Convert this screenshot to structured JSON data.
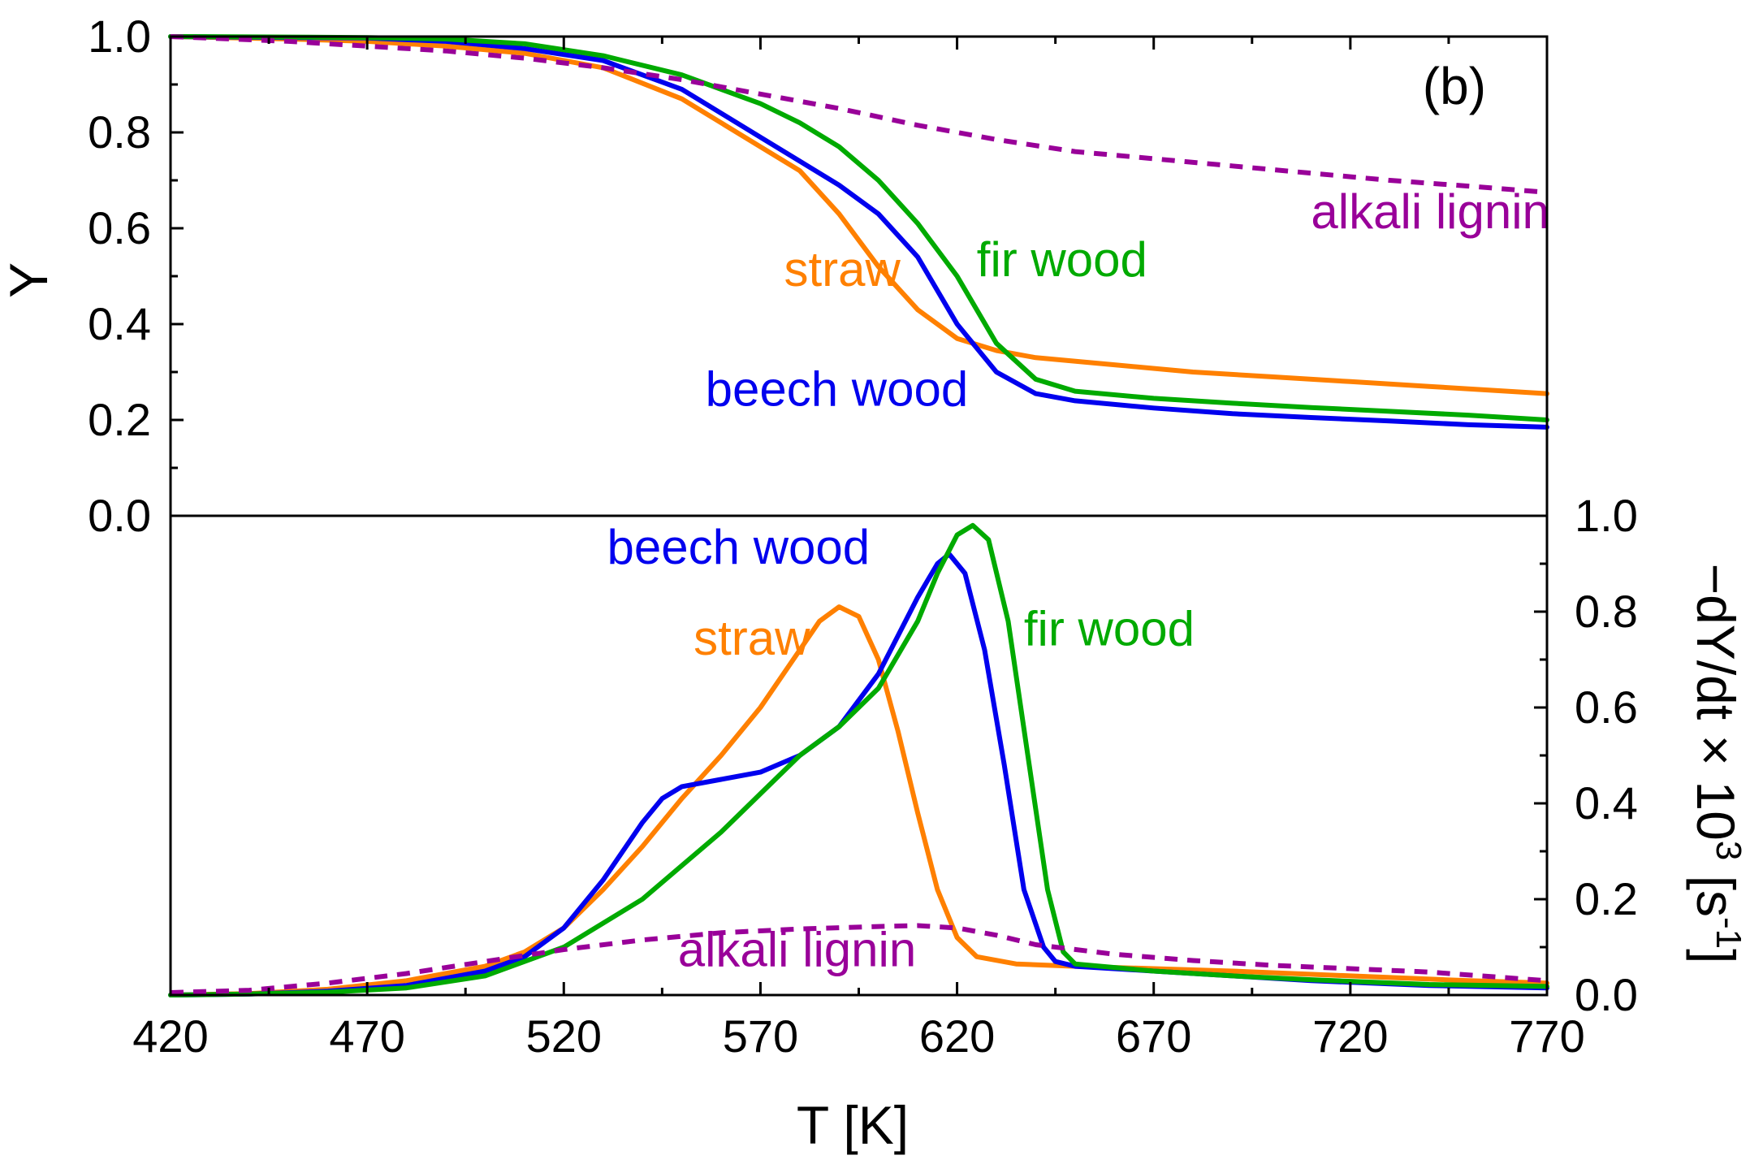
{
  "chart_data": [
    {
      "id": "top",
      "type": "line",
      "panel_label": "(b)",
      "xlabel": "T [K]",
      "ylabel": "Y",
      "xlim": [
        420,
        770
      ],
      "ylim": [
        0,
        1
      ],
      "xticks": [
        "420",
        "470",
        "520",
        "570",
        "620",
        "670",
        "720",
        "770"
      ],
      "yticks": [
        "0.0",
        "0.2",
        "0.4",
        "0.6",
        "0.8",
        "1.0"
      ],
      "series": [
        {
          "name": "straw",
          "color": "#ff8000",
          "dashed": false,
          "points": [
            [
              420,
              1.0
            ],
            [
              450,
              0.995
            ],
            [
              470,
              0.99
            ],
            [
              490,
              0.98
            ],
            [
              510,
              0.965
            ],
            [
              530,
              0.935
            ],
            [
              550,
              0.87
            ],
            [
              570,
              0.77
            ],
            [
              580,
              0.72
            ],
            [
              590,
              0.63
            ],
            [
              600,
              0.52
            ],
            [
              610,
              0.43
            ],
            [
              620,
              0.37
            ],
            [
              630,
              0.345
            ],
            [
              640,
              0.33
            ],
            [
              660,
              0.315
            ],
            [
              680,
              0.3
            ],
            [
              700,
              0.29
            ],
            [
              720,
              0.28
            ],
            [
              740,
              0.27
            ],
            [
              770,
              0.255
            ]
          ]
        },
        {
          "name": "beech wood",
          "color": "#0000ee",
          "dashed": false,
          "points": [
            [
              420,
              1.0
            ],
            [
              450,
              0.998
            ],
            [
              470,
              0.997
            ],
            [
              490,
              0.99
            ],
            [
              510,
              0.975
            ],
            [
              530,
              0.95
            ],
            [
              550,
              0.89
            ],
            [
              570,
              0.79
            ],
            [
              580,
              0.74
            ],
            [
              590,
              0.69
            ],
            [
              600,
              0.63
            ],
            [
              610,
              0.54
            ],
            [
              620,
              0.4
            ],
            [
              630,
              0.3
            ],
            [
              640,
              0.255
            ],
            [
              650,
              0.24
            ],
            [
              670,
              0.225
            ],
            [
              690,
              0.213
            ],
            [
              710,
              0.205
            ],
            [
              730,
              0.198
            ],
            [
              750,
              0.19
            ],
            [
              770,
              0.185
            ]
          ]
        },
        {
          "name": "fir wood",
          "color": "#00aa00",
          "dashed": false,
          "points": [
            [
              420,
              1.0
            ],
            [
              450,
              0.999
            ],
            [
              470,
              0.998
            ],
            [
              490,
              0.995
            ],
            [
              510,
              0.985
            ],
            [
              530,
              0.96
            ],
            [
              550,
              0.92
            ],
            [
              570,
              0.86
            ],
            [
              580,
              0.82
            ],
            [
              590,
              0.77
            ],
            [
              600,
              0.7
            ],
            [
              610,
              0.61
            ],
            [
              620,
              0.5
            ],
            [
              630,
              0.36
            ],
            [
              640,
              0.285
            ],
            [
              650,
              0.26
            ],
            [
              670,
              0.245
            ],
            [
              690,
              0.235
            ],
            [
              710,
              0.226
            ],
            [
              730,
              0.218
            ],
            [
              750,
              0.21
            ],
            [
              770,
              0.2
            ]
          ]
        },
        {
          "name": "alkali lignin",
          "color": "#990099",
          "dashed": true,
          "points": [
            [
              420,
              1.0
            ],
            [
              450,
              0.99
            ],
            [
              470,
              0.98
            ],
            [
              490,
              0.97
            ],
            [
              510,
              0.955
            ],
            [
              530,
              0.935
            ],
            [
              550,
              0.91
            ],
            [
              570,
              0.88
            ],
            [
              590,
              0.85
            ],
            [
              610,
              0.815
            ],
            [
              630,
              0.785
            ],
            [
              650,
              0.76
            ],
            [
              670,
              0.745
            ],
            [
              690,
              0.73
            ],
            [
              710,
              0.715
            ],
            [
              730,
              0.7
            ],
            [
              750,
              0.688
            ],
            [
              770,
              0.675
            ]
          ]
        }
      ],
      "labels": [
        {
          "text": "alkali lignin",
          "color": "#990099",
          "x": 710,
          "y": 0.6
        },
        {
          "text": "fir wood",
          "color": "#00aa00",
          "x": 625,
          "y": 0.5
        },
        {
          "text": "straw",
          "color": "#ff8000",
          "x": 576,
          "y": 0.48
        },
        {
          "text": "beech wood",
          "color": "#0000ee",
          "x": 556,
          "y": 0.23
        }
      ]
    },
    {
      "id": "bottom",
      "type": "line",
      "xlabel": "T [K]",
      "ylabel": "−dY/dt × 10³ [s⁻¹]",
      "ylabel_parts": [
        "−dY/dt × 10",
        "3",
        " [s",
        "-1",
        "]"
      ],
      "xlim": [
        420,
        770
      ],
      "ylim": [
        0,
        1
      ],
      "xticks": [
        "420",
        "470",
        "520",
        "570",
        "620",
        "670",
        "720",
        "770"
      ],
      "yticks": [
        "0.0",
        "0.2",
        "0.4",
        "0.6",
        "0.8",
        "1.0"
      ],
      "series": [
        {
          "name": "straw",
          "color": "#ff8000",
          "dashed": false,
          "points": [
            [
              420,
              0.0
            ],
            [
              440,
              0.003
            ],
            [
              460,
              0.012
            ],
            [
              480,
              0.03
            ],
            [
              500,
              0.06
            ],
            [
              510,
              0.09
            ],
            [
              520,
              0.14
            ],
            [
              530,
              0.22
            ],
            [
              540,
              0.31
            ],
            [
              550,
              0.41
            ],
            [
              560,
              0.5
            ],
            [
              570,
              0.6
            ],
            [
              580,
              0.72
            ],
            [
              585,
              0.78
            ],
            [
              590,
              0.81
            ],
            [
              595,
              0.79
            ],
            [
              600,
              0.7
            ],
            [
              605,
              0.55
            ],
            [
              610,
              0.38
            ],
            [
              615,
              0.22
            ],
            [
              620,
              0.12
            ],
            [
              625,
              0.08
            ],
            [
              635,
              0.065
            ],
            [
              650,
              0.06
            ],
            [
              670,
              0.055
            ],
            [
              690,
              0.05
            ],
            [
              720,
              0.04
            ],
            [
              750,
              0.03
            ],
            [
              770,
              0.025
            ]
          ]
        },
        {
          "name": "beech wood",
          "color": "#0000ee",
          "dashed": false,
          "points": [
            [
              420,
              0.0
            ],
            [
              440,
              0.002
            ],
            [
              460,
              0.008
            ],
            [
              480,
              0.02
            ],
            [
              500,
              0.05
            ],
            [
              510,
              0.08
            ],
            [
              520,
              0.14
            ],
            [
              530,
              0.24
            ],
            [
              540,
              0.36
            ],
            [
              545,
              0.41
            ],
            [
              550,
              0.435
            ],
            [
              560,
              0.45
            ],
            [
              570,
              0.465
            ],
            [
              580,
              0.5
            ],
            [
              590,
              0.56
            ],
            [
              600,
              0.67
            ],
            [
              610,
              0.83
            ],
            [
              615,
              0.9
            ],
            [
              618,
              0.92
            ],
            [
              622,
              0.88
            ],
            [
              627,
              0.72
            ],
            [
              632,
              0.48
            ],
            [
              637,
              0.22
            ],
            [
              642,
              0.1
            ],
            [
              645,
              0.07
            ],
            [
              650,
              0.06
            ],
            [
              670,
              0.05
            ],
            [
              690,
              0.04
            ],
            [
              710,
              0.03
            ],
            [
              740,
              0.02
            ],
            [
              770,
              0.015
            ]
          ]
        },
        {
          "name": "fir wood",
          "color": "#00aa00",
          "dashed": false,
          "points": [
            [
              420,
              0.0
            ],
            [
              440,
              0.002
            ],
            [
              460,
              0.006
            ],
            [
              480,
              0.015
            ],
            [
              500,
              0.04
            ],
            [
              520,
              0.1
            ],
            [
              540,
              0.2
            ],
            [
              560,
              0.34
            ],
            [
              570,
              0.42
            ],
            [
              580,
              0.5
            ],
            [
              590,
              0.56
            ],
            [
              600,
              0.64
            ],
            [
              610,
              0.78
            ],
            [
              615,
              0.88
            ],
            [
              620,
              0.96
            ],
            [
              624,
              0.98
            ],
            [
              628,
              0.95
            ],
            [
              633,
              0.78
            ],
            [
              638,
              0.5
            ],
            [
              643,
              0.22
            ],
            [
              647,
              0.09
            ],
            [
              650,
              0.065
            ],
            [
              670,
              0.05
            ],
            [
              690,
              0.04
            ],
            [
              710,
              0.032
            ],
            [
              740,
              0.022
            ],
            [
              770,
              0.018
            ]
          ]
        },
        {
          "name": "alkali lignin",
          "color": "#990099",
          "dashed": true,
          "points": [
            [
              420,
              0.005
            ],
            [
              440,
              0.01
            ],
            [
              460,
              0.025
            ],
            [
              480,
              0.045
            ],
            [
              500,
              0.07
            ],
            [
              520,
              0.095
            ],
            [
              540,
              0.115
            ],
            [
              560,
              0.13
            ],
            [
              580,
              0.138
            ],
            [
              600,
              0.143
            ],
            [
              610,
              0.145
            ],
            [
              620,
              0.14
            ],
            [
              630,
              0.125
            ],
            [
              640,
              0.105
            ],
            [
              660,
              0.085
            ],
            [
              680,
              0.072
            ],
            [
              700,
              0.062
            ],
            [
              720,
              0.055
            ],
            [
              740,
              0.048
            ],
            [
              770,
              0.03
            ]
          ]
        }
      ],
      "labels": [
        {
          "text": "beech wood",
          "color": "#0000ee",
          "x": 531,
          "y": 0.9
        },
        {
          "text": "fir wood",
          "color": "#00aa00",
          "x": 637,
          "y": 0.73
        },
        {
          "text": "straw",
          "color": "#ff8000",
          "x": 553,
          "y": 0.71
        },
        {
          "text": "alkali lignin",
          "color": "#990099",
          "x": 549,
          "y": 0.06
        }
      ]
    }
  ]
}
